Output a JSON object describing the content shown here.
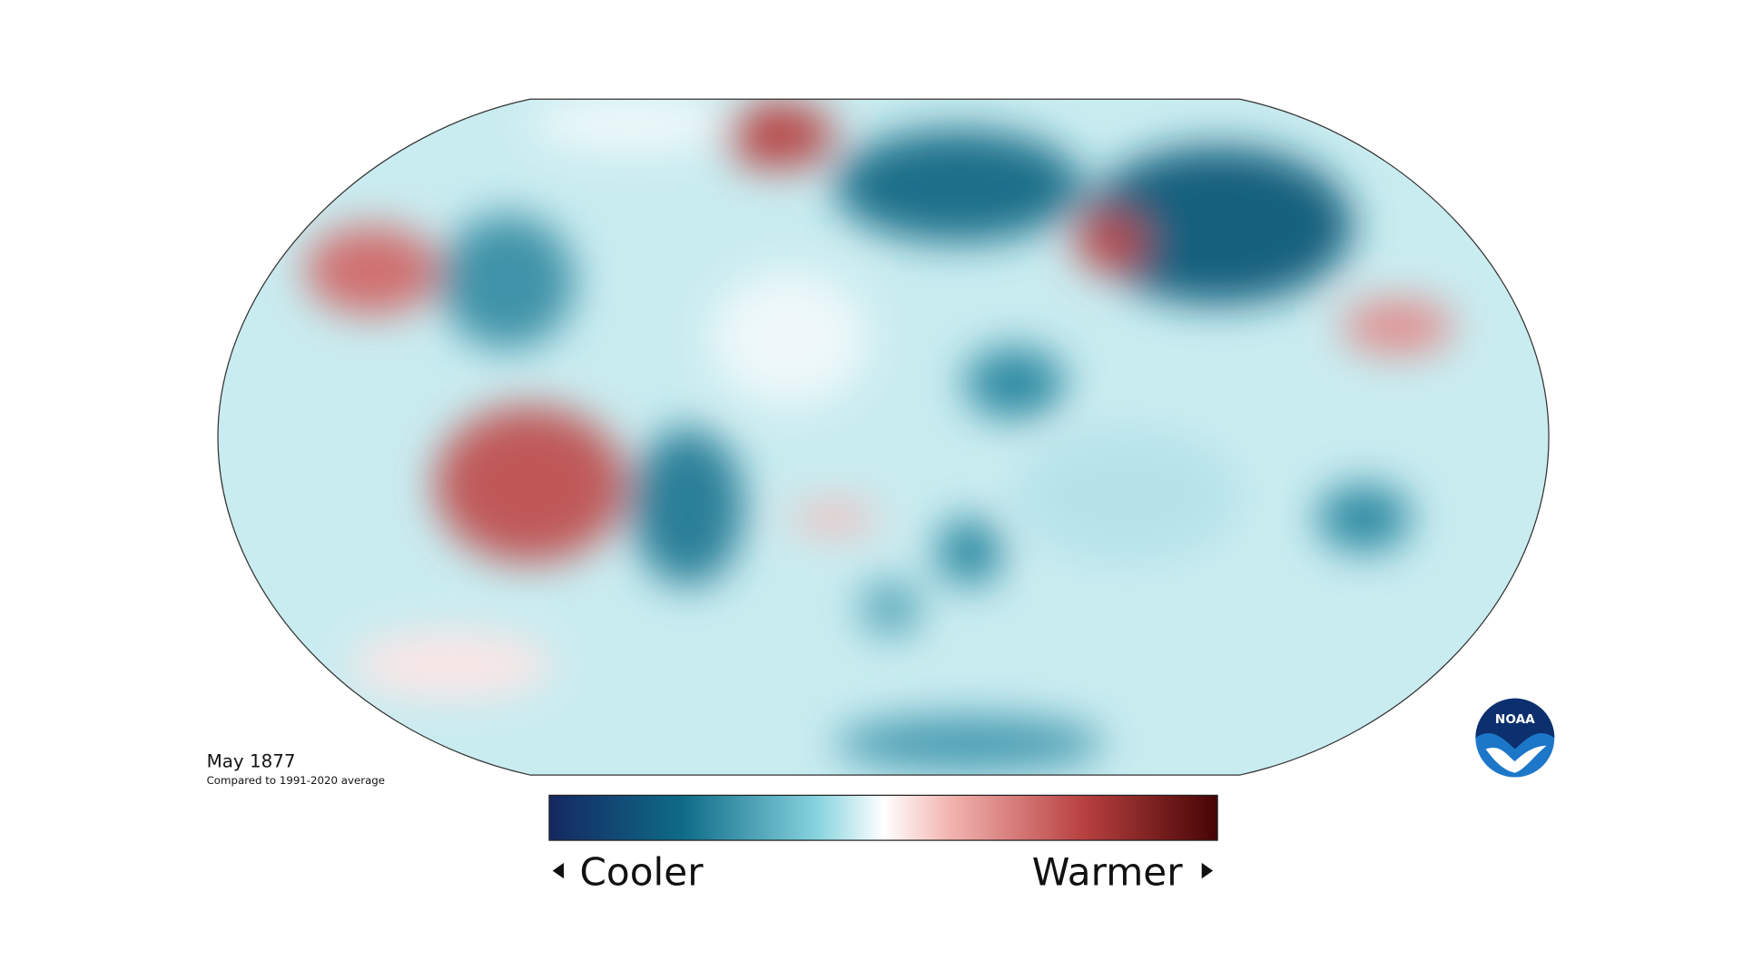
{
  "map": {
    "title": "May 1877",
    "subtitle": "Compared to 1991-2020 average"
  },
  "legend": {
    "low": "Cooler",
    "high": "Warmer"
  },
  "logo": {
    "text": "NOAA"
  }
}
